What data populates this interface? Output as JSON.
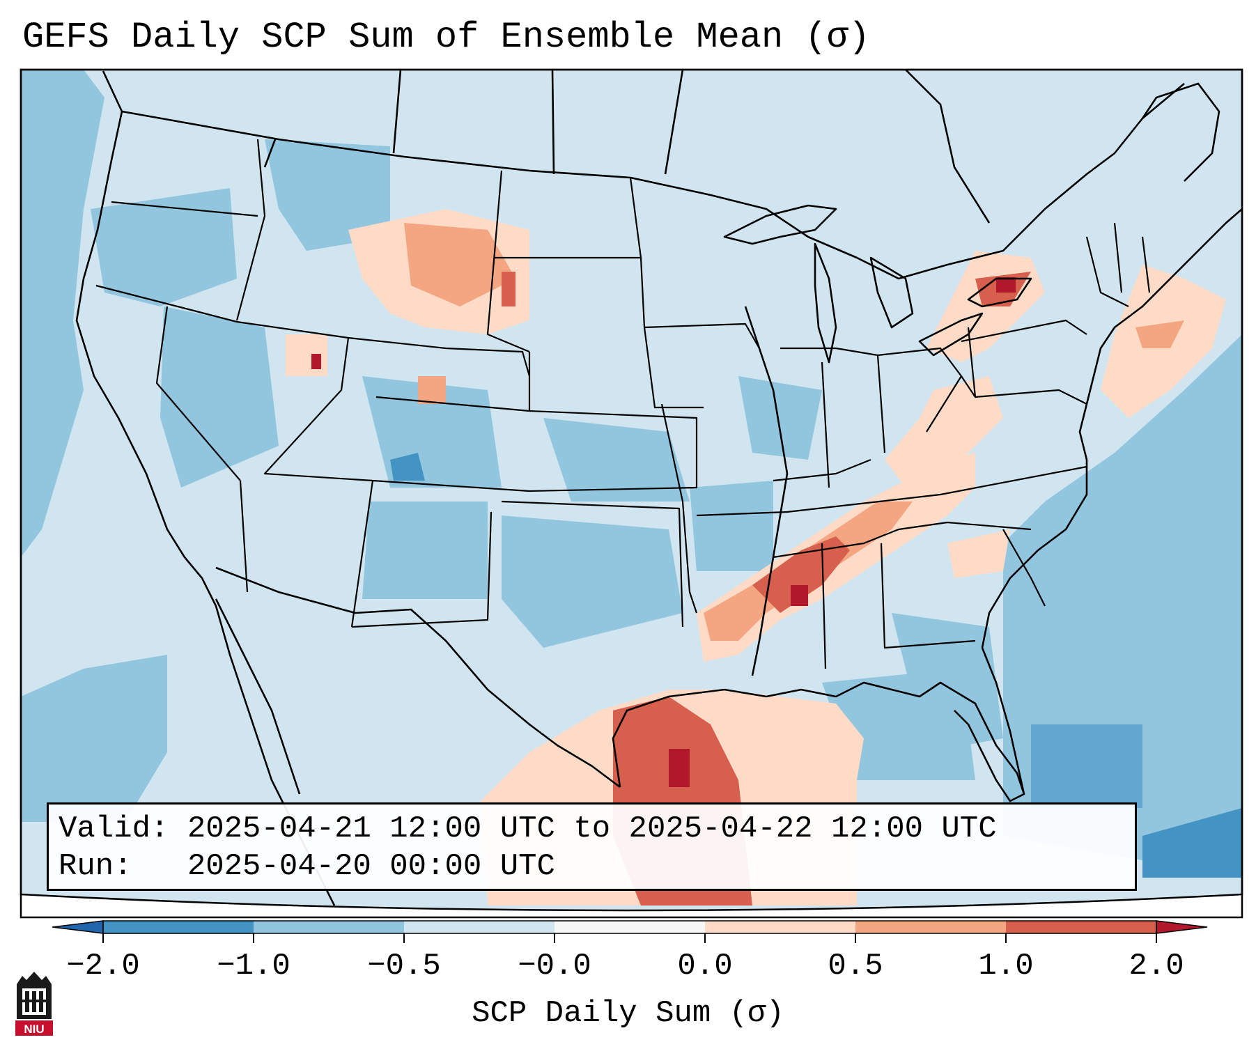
{
  "title": "GEFS Daily SCP Sum of Ensemble Mean (σ)",
  "valid_line": "Valid: 2025-04-21 12:00 UTC to 2025-04-22 12:00 UTC",
  "run_line": "Run:   2025-04-20 00:00 UTC",
  "colorbar": {
    "label": "SCP Daily Sum (σ)",
    "tick_labels": [
      "−2.0",
      "−1.0",
      "−0.5",
      "−0.0",
      "0.0",
      "0.5",
      "1.0",
      "2.0"
    ],
    "bins": [
      {
        "from": -2.0,
        "to": -1.0,
        "color": "#4393c3"
      },
      {
        "from": -1.0,
        "to": -0.5,
        "color": "#92c5de"
      },
      {
        "from": -0.5,
        "to": 0.0,
        "color": "#d1e5f0"
      },
      {
        "from": 0.0,
        "to": 0.0,
        "color": "#f7f7f7"
      },
      {
        "from": 0.0,
        "to": 0.5,
        "color": "#fddbc7"
      },
      {
        "from": 0.5,
        "to": 1.0,
        "color": "#f4a582"
      },
      {
        "from": 1.0,
        "to": 2.0,
        "color": "#d6604d"
      }
    ],
    "under_color": "#2166ac",
    "over_color": "#b2182b",
    "orientation": "horizontal",
    "extend": "both"
  },
  "map": {
    "projection": "Lambert Conformal",
    "region": "CONUS",
    "background_field": "#d1e5f0",
    "ocean_color": "#92c5de",
    "outlines": [
      "coastlines",
      "country borders",
      "state borders"
    ]
  },
  "logo": {
    "text": "NIU",
    "icon": "niu-tower-logo-icon"
  }
}
